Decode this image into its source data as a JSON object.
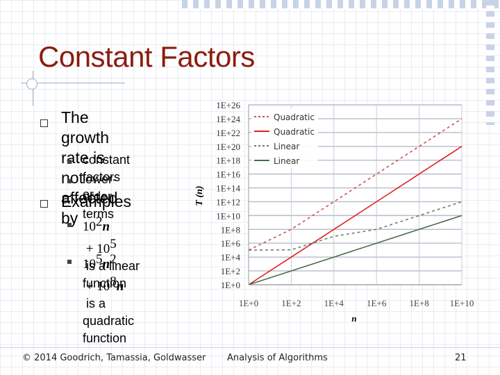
{
  "slide": {
    "title": "Constant Factors",
    "bullets": [
      {
        "text_lines": [
          "The growth rate is",
          "not affected by"
        ],
        "sub": [
          "constant factors or",
          "lower-order terms"
        ]
      },
      {
        "text_lines": [
          "Examples"
        ],
        "sub": [
          {
            "a_coef": "10",
            "a_exp": "2",
            "a_var": "n",
            "op": " + ",
            "b_coef": "10",
            "b_exp": "5",
            "rest1": " is a linear",
            "rest2": "function"
          },
          {
            "a_coef": "10",
            "a_exp": "5",
            "a_var": "n",
            "a_var_exp": "2",
            "op": " + ",
            "b_coef": "10",
            "b_exp": "8",
            "b_var": "n",
            "rest1": " is a",
            "rest2": "quadratic function"
          }
        ]
      }
    ],
    "footer": {
      "left": "© 2014 Goodrich, Tamassia, Goldwasser",
      "center": "Analysis of Algorithms",
      "page": "21"
    }
  },
  "chart_data": {
    "type": "line",
    "xlabel": "n",
    "ylabel": "T (n)",
    "xscale": "log",
    "yscale": "log",
    "x_ticks": [
      "1E+0",
      "1E+2",
      "1E+4",
      "1E+6",
      "1E+8",
      "1E+10"
    ],
    "y_ticks": [
      "1E+0",
      "1E+2",
      "1E+4",
      "1E+6",
      "1E+8",
      "1E+10",
      "1E+12",
      "1E+14",
      "1E+16",
      "1E+18",
      "1E+20",
      "1E+22",
      "1E+24",
      "1E+26"
    ],
    "xlim_exp": [
      0,
      10
    ],
    "ylim_exp": [
      0,
      26
    ],
    "grid": true,
    "legend_position": "top-left",
    "series": [
      {
        "name": "Quadratic",
        "style": "dashed",
        "color": "#d05050",
        "log_points": [
          [
            0,
            5
          ],
          [
            2,
            8
          ],
          [
            4,
            12
          ],
          [
            6,
            16
          ],
          [
            8,
            20
          ],
          [
            10,
            24
          ]
        ]
      },
      {
        "name": "Quadratic",
        "style": "solid",
        "color": "#e02020",
        "log_points": [
          [
            0,
            0
          ],
          [
            2,
            4
          ],
          [
            4,
            8
          ],
          [
            6,
            12
          ],
          [
            8,
            16
          ],
          [
            10,
            20
          ]
        ]
      },
      {
        "name": "Linear",
        "style": "dashed",
        "color": "#6a7f6a",
        "log_points": [
          [
            0,
            5
          ],
          [
            2,
            5.05
          ],
          [
            4,
            7
          ],
          [
            6,
            8
          ],
          [
            8,
            10
          ],
          [
            10,
            12
          ]
        ]
      },
      {
        "name": "Linear",
        "style": "solid",
        "color": "#4a6a4a",
        "log_points": [
          [
            0,
            0
          ],
          [
            2,
            2
          ],
          [
            4,
            4
          ],
          [
            6,
            6
          ],
          [
            8,
            8
          ],
          [
            10,
            10
          ]
        ]
      }
    ]
  }
}
